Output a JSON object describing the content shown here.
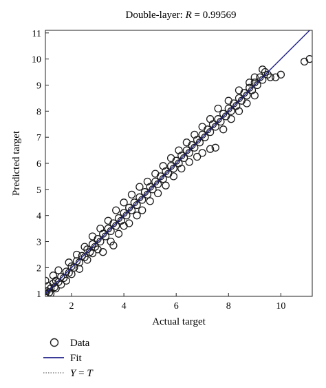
{
  "chart_data": {
    "type": "scatter",
    "title_prefix": "Double-layer: ",
    "title_var": "R",
    "title_value": " = 0.99569",
    "xlabel": "Actual target",
    "ylabel": "Predicted target",
    "xlim": [
      1,
      11.2
    ],
    "ylim": [
      0.9,
      11.1
    ],
    "xticks": [
      2,
      4,
      6,
      8,
      10
    ],
    "yticks": [
      1,
      2,
      3,
      4,
      5,
      6,
      7,
      8,
      9,
      10,
      11
    ],
    "grid": false,
    "legend_position": "bottom-left, below plot",
    "fit_line": {
      "slope": 1.0,
      "intercept": 0.0,
      "color": "#1f1f8a"
    },
    "identity_line": {
      "label_left": "Y",
      "label_op": " = ",
      "label_right": "T",
      "style": "dotted"
    },
    "series": [
      {
        "name": "Data",
        "marker": "circle-open",
        "points": [
          [
            1.0,
            1.0
          ],
          [
            1.05,
            1.1
          ],
          [
            1.1,
            1.3
          ],
          [
            1.15,
            1.05
          ],
          [
            1.2,
            1.2
          ],
          [
            1.3,
            1.4
          ],
          [
            1.35,
            1.25
          ],
          [
            1.4,
            1.5
          ],
          [
            1.5,
            1.45
          ],
          [
            1.6,
            1.65
          ],
          [
            1.7,
            1.6
          ],
          [
            1.8,
            1.85
          ],
          [
            1.9,
            1.8
          ],
          [
            2.0,
            2.05
          ],
          [
            2.1,
            2.0
          ],
          [
            2.2,
            2.25
          ],
          [
            2.3,
            2.2
          ],
          [
            2.4,
            2.45
          ],
          [
            2.5,
            2.4
          ],
          [
            2.6,
            2.7
          ],
          [
            2.7,
            2.6
          ],
          [
            2.8,
            2.9
          ],
          [
            2.9,
            2.8
          ],
          [
            3.0,
            3.1
          ],
          [
            3.1,
            3.0
          ],
          [
            3.2,
            3.3
          ],
          [
            3.3,
            3.2
          ],
          [
            3.4,
            3.5
          ],
          [
            3.5,
            3.4
          ],
          [
            3.6,
            3.7
          ],
          [
            3.7,
            3.6
          ],
          [
            3.8,
            3.9
          ],
          [
            3.9,
            3.8
          ],
          [
            4.0,
            4.1
          ],
          [
            4.1,
            4.0
          ],
          [
            4.2,
            4.3
          ],
          [
            4.3,
            4.2
          ],
          [
            4.4,
            4.5
          ],
          [
            4.5,
            4.4
          ],
          [
            4.6,
            4.7
          ],
          [
            4.7,
            4.6
          ],
          [
            4.8,
            4.9
          ],
          [
            4.9,
            4.8
          ],
          [
            5.0,
            5.1
          ],
          [
            5.1,
            5.0
          ],
          [
            5.2,
            5.3
          ],
          [
            5.3,
            5.2
          ],
          [
            5.4,
            5.5
          ],
          [
            5.5,
            5.4
          ],
          [
            5.6,
            5.7
          ],
          [
            5.7,
            5.6
          ],
          [
            5.8,
            5.9
          ],
          [
            5.9,
            5.8
          ],
          [
            6.0,
            6.1
          ],
          [
            6.1,
            6.0
          ],
          [
            6.2,
            6.3
          ],
          [
            6.3,
            6.2
          ],
          [
            6.4,
            6.5
          ],
          [
            6.5,
            6.4
          ],
          [
            6.6,
            6.7
          ],
          [
            6.7,
            6.6
          ],
          [
            6.8,
            6.9
          ],
          [
            6.9,
            6.8
          ],
          [
            7.0,
            7.1
          ],
          [
            7.1,
            7.0
          ],
          [
            7.2,
            7.3
          ],
          [
            7.3,
            7.2
          ],
          [
            7.4,
            7.5
          ],
          [
            7.5,
            7.4
          ],
          [
            7.6,
            7.7
          ],
          [
            7.7,
            7.6
          ],
          [
            7.8,
            7.9
          ],
          [
            7.9,
            7.8
          ],
          [
            8.0,
            8.1
          ],
          [
            8.1,
            8.0
          ],
          [
            8.2,
            8.3
          ],
          [
            8.3,
            8.2
          ],
          [
            8.4,
            8.5
          ],
          [
            8.5,
            8.4
          ],
          [
            8.6,
            8.7
          ],
          [
            8.7,
            8.6
          ],
          [
            8.8,
            8.9
          ],
          [
            8.9,
            8.8
          ],
          [
            9.0,
            9.1
          ],
          [
            9.1,
            9.0
          ],
          [
            9.2,
            9.3
          ],
          [
            9.3,
            9.2
          ],
          [
            9.4,
            9.5
          ],
          [
            9.5,
            9.4
          ],
          [
            9.6,
            9.3
          ],
          [
            9.8,
            9.3
          ],
          [
            10.0,
            9.4
          ],
          [
            10.9,
            9.9
          ],
          [
            11.1,
            10.0
          ],
          [
            1.2,
            1.0
          ],
          [
            1.4,
            1.2
          ],
          [
            1.6,
            1.35
          ],
          [
            1.8,
            1.5
          ],
          [
            2.0,
            1.75
          ],
          [
            2.3,
            1.95
          ],
          [
            2.6,
            2.3
          ],
          [
            2.8,
            2.55
          ],
          [
            3.0,
            2.7
          ],
          [
            3.2,
            2.6
          ],
          [
            3.5,
            3.0
          ],
          [
            3.6,
            2.85
          ],
          [
            3.8,
            3.3
          ],
          [
            4.0,
            3.6
          ],
          [
            4.2,
            3.7
          ],
          [
            4.5,
            4.0
          ],
          [
            4.7,
            4.2
          ],
          [
            5.0,
            4.55
          ],
          [
            5.3,
            4.85
          ],
          [
            5.6,
            5.15
          ],
          [
            5.9,
            5.5
          ],
          [
            6.2,
            5.8
          ],
          [
            6.5,
            6.05
          ],
          [
            6.8,
            6.25
          ],
          [
            7.0,
            6.4
          ],
          [
            7.3,
            6.55
          ],
          [
            7.5,
            6.6
          ],
          [
            7.8,
            7.3
          ],
          [
            8.1,
            7.7
          ],
          [
            8.4,
            8.0
          ],
          [
            8.7,
            8.3
          ],
          [
            9.0,
            8.6
          ],
          [
            1.0,
            1.5
          ],
          [
            1.3,
            1.7
          ],
          [
            1.5,
            1.9
          ],
          [
            1.9,
            2.2
          ],
          [
            2.2,
            2.5
          ],
          [
            2.5,
            2.8
          ],
          [
            2.8,
            3.2
          ],
          [
            3.1,
            3.5
          ],
          [
            3.4,
            3.8
          ],
          [
            3.7,
            4.2
          ],
          [
            4.0,
            4.5
          ],
          [
            4.3,
            4.8
          ],
          [
            4.6,
            5.1
          ],
          [
            4.9,
            5.3
          ],
          [
            5.2,
            5.6
          ],
          [
            5.5,
            5.9
          ],
          [
            5.8,
            6.2
          ],
          [
            6.1,
            6.5
          ],
          [
            6.4,
            6.8
          ],
          [
            6.7,
            7.1
          ],
          [
            7.0,
            7.4
          ],
          [
            7.3,
            7.7
          ],
          [
            7.6,
            8.1
          ],
          [
            8.0,
            8.4
          ],
          [
            8.4,
            8.8
          ],
          [
            8.8,
            9.1
          ],
          [
            9.0,
            9.3
          ],
          [
            9.3,
            9.6
          ]
        ]
      }
    ],
    "legend": [
      {
        "key": "data",
        "label": "Data"
      },
      {
        "key": "fit",
        "label": "Fit"
      },
      {
        "key": "yt",
        "label_left": "Y",
        "label_op": " = ",
        "label_right": "T"
      }
    ]
  }
}
